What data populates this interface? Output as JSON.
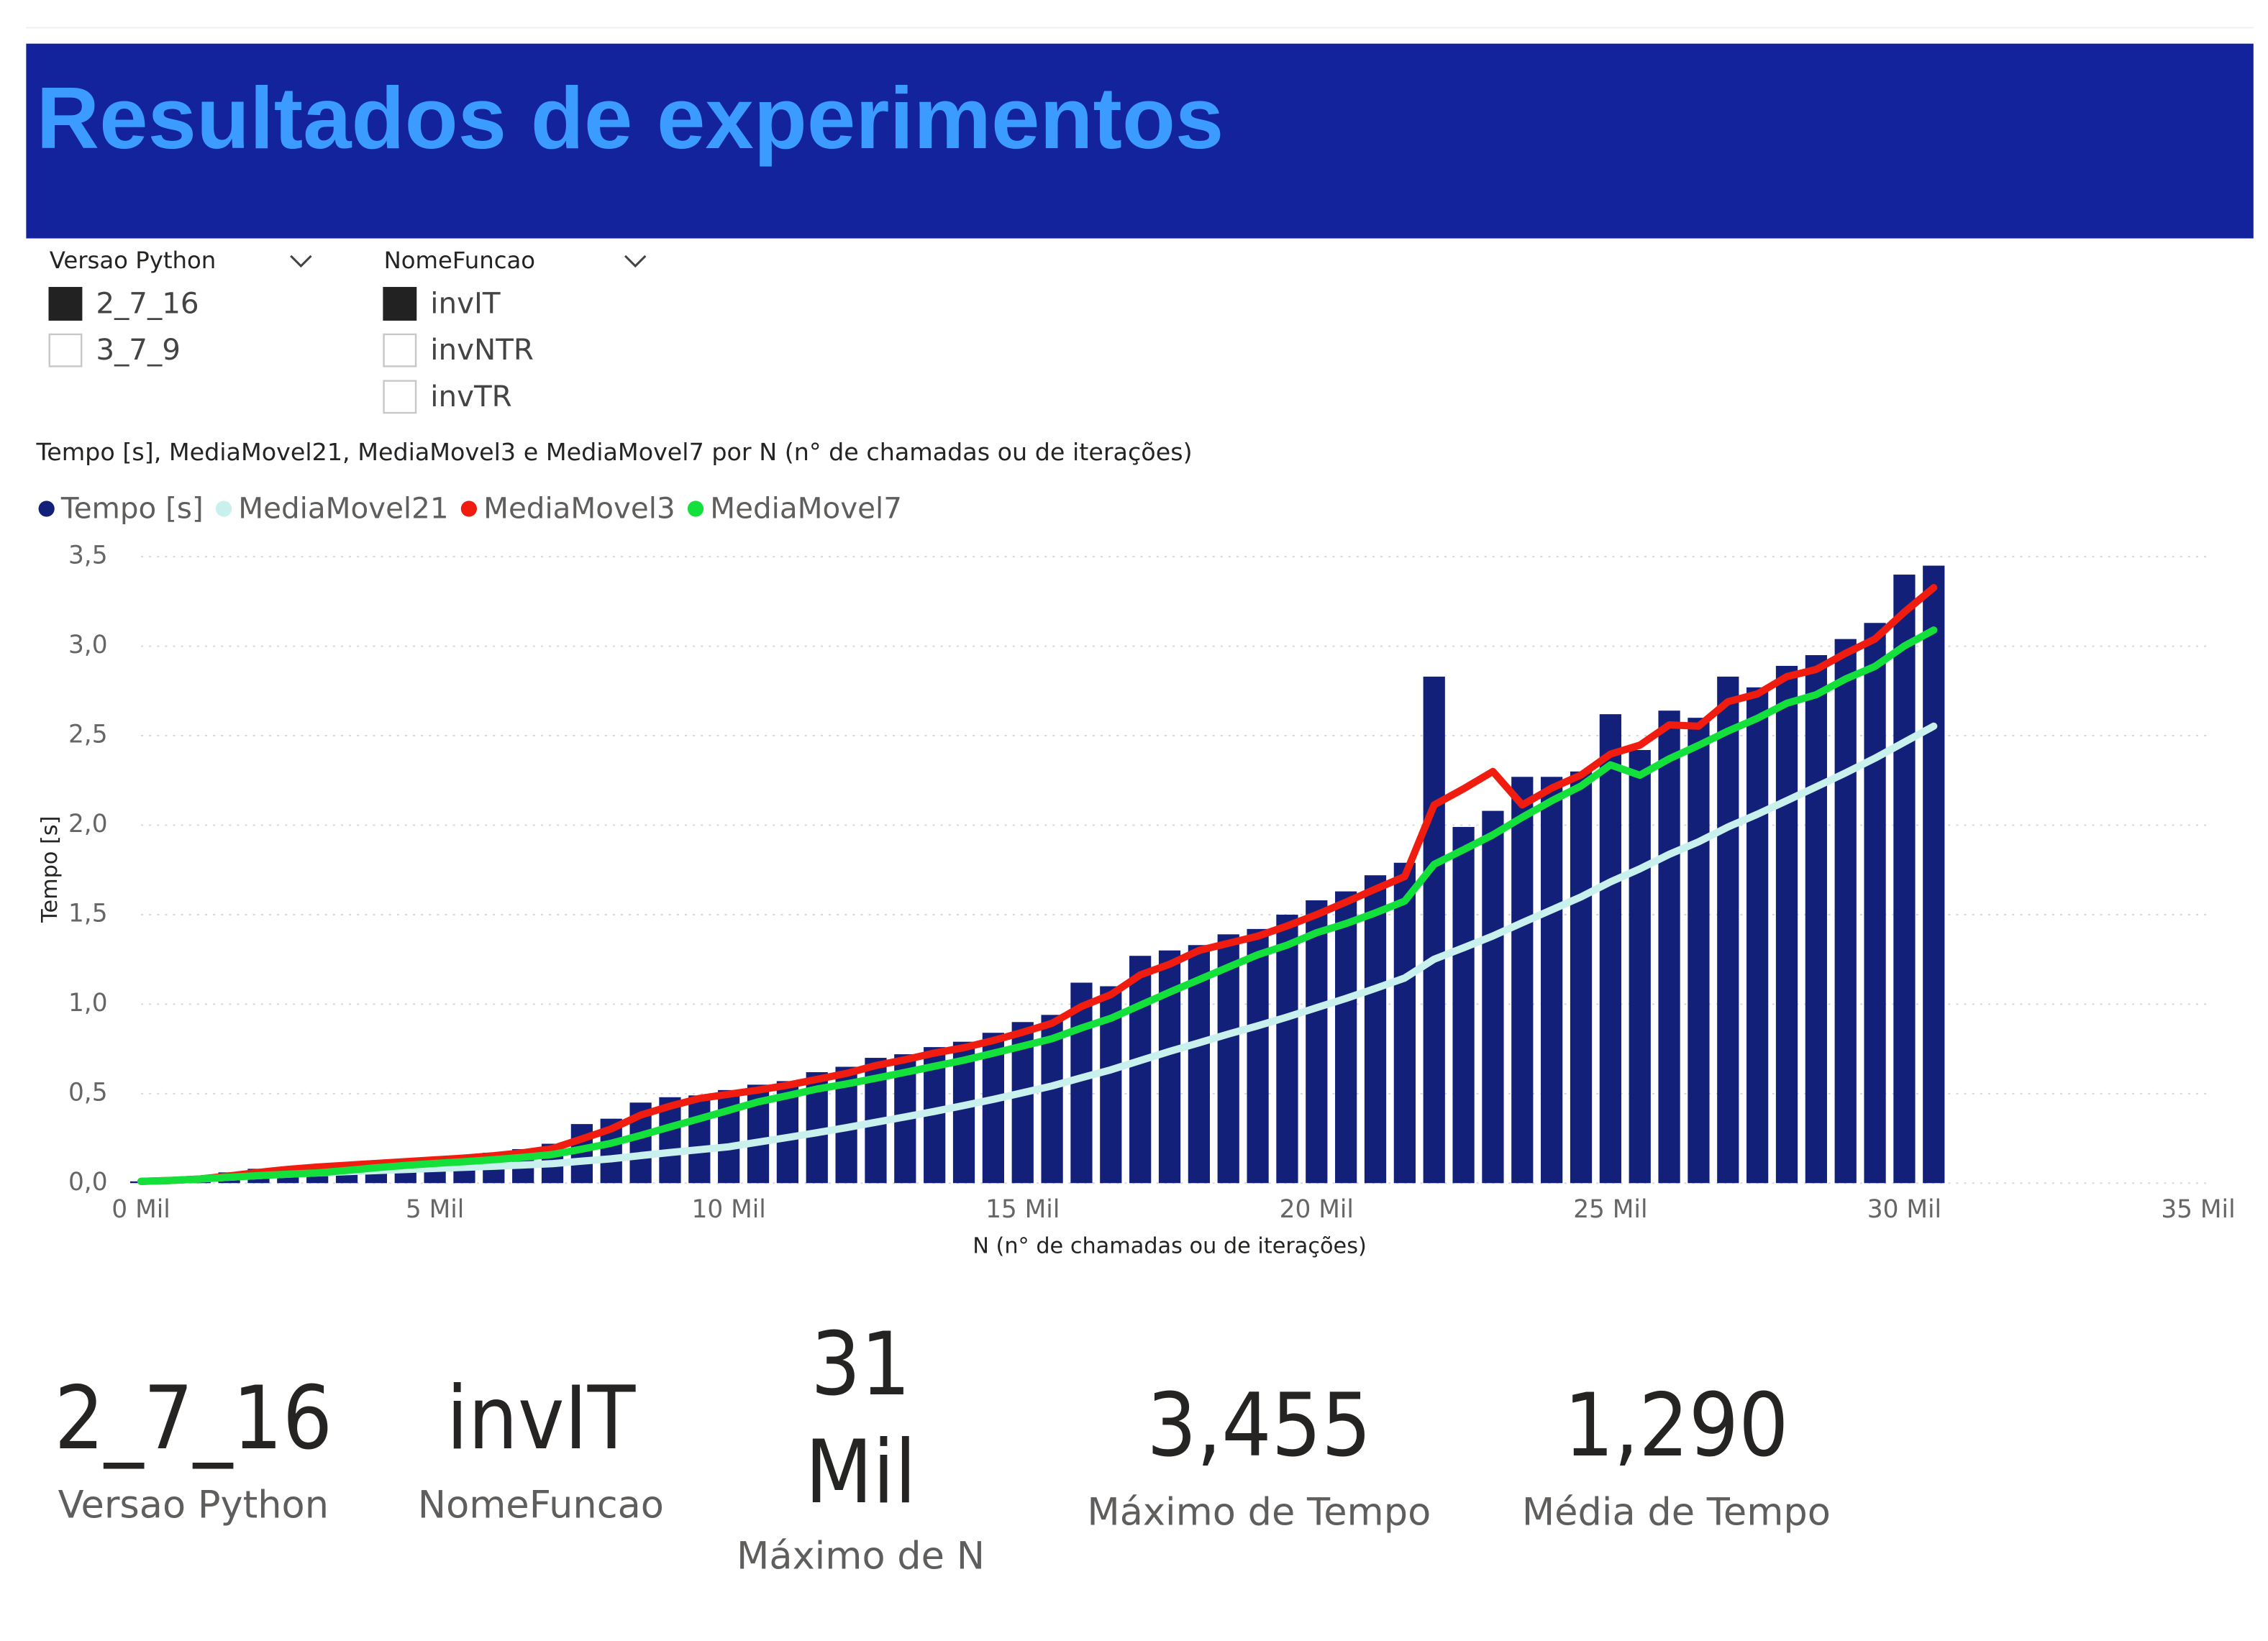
{
  "header": {
    "title": "Resultados de experimentos"
  },
  "slicers": [
    {
      "title": "Versao Python",
      "items": [
        {
          "label": "2_7_16",
          "selected": true
        },
        {
          "label": "3_7_9",
          "selected": false
        }
      ]
    },
    {
      "title": "NomeFuncao",
      "items": [
        {
          "label": "invIT",
          "selected": true
        },
        {
          "label": "invNTR",
          "selected": false
        },
        {
          "label": "invTR",
          "selected": false
        }
      ]
    }
  ],
  "chart_data": {
    "type": "combo",
    "title": "Tempo [s], MediaMovel21, MediaMovel3 e MediaMovel7 por N (n° de chamadas ou de iterações)",
    "xlabel": "N (n° de chamadas ou de iterações)",
    "ylabel": "Tempo [s]",
    "legend": "top-left",
    "grid": true,
    "x": [
      0,
      500,
      1000,
      1500,
      2000,
      2500,
      3000,
      3500,
      4000,
      4500,
      5000,
      5500,
      6000,
      6500,
      7000,
      7500,
      8000,
      8500,
      9000,
      9500,
      10000,
      10500,
      11000,
      11500,
      12000,
      12500,
      13000,
      13500,
      14000,
      14500,
      15000,
      15500,
      16000,
      16500,
      17000,
      17500,
      18000,
      18500,
      19000,
      19500,
      20000,
      20500,
      21000,
      21500,
      22000,
      22500,
      23000,
      23500,
      24000,
      24500,
      25000,
      25500,
      26000,
      26500,
      27000,
      27500,
      28000,
      28500,
      29000,
      29500,
      30000,
      30500
    ],
    "series": [
      {
        "name": "Tempo [s]",
        "type": "bar",
        "color": "#12207a",
        "values": [
          0.01,
          0.02,
          0.04,
          0.06,
          0.08,
          0.09,
          0.1,
          0.11,
          0.12,
          0.13,
          0.14,
          0.15,
          0.17,
          0.19,
          0.22,
          0.33,
          0.36,
          0.45,
          0.48,
          0.49,
          0.52,
          0.55,
          0.57,
          0.62,
          0.65,
          0.7,
          0.72,
          0.76,
          0.79,
          0.84,
          0.9,
          0.94,
          1.12,
          1.1,
          1.27,
          1.3,
          1.33,
          1.39,
          1.42,
          1.5,
          1.58,
          1.63,
          1.72,
          1.79,
          2.83,
          1.99,
          2.08,
          2.27,
          2.27,
          2.3,
          2.62,
          2.42,
          2.64,
          2.6,
          2.83,
          2.77,
          2.89,
          2.95,
          3.04,
          3.13,
          3.4,
          3.45
        ]
      },
      {
        "name": "MediaMovel21",
        "type": "line",
        "color": "#c8f0ec",
        "values": [
          0.01,
          0.015,
          0.023,
          0.033,
          0.042,
          0.05,
          0.057,
          0.064,
          0.07,
          0.076,
          0.082,
          0.088,
          0.094,
          0.101,
          0.109,
          0.123,
          0.136,
          0.154,
          0.171,
          0.187,
          0.203,
          0.229,
          0.255,
          0.282,
          0.31,
          0.34,
          0.37,
          0.401,
          0.434,
          0.468,
          0.505,
          0.543,
          0.589,
          0.633,
          0.685,
          0.736,
          0.784,
          0.833,
          0.879,
          0.928,
          0.98,
          1.032,
          1.088,
          1.146,
          1.251,
          1.315,
          1.381,
          1.455,
          1.527,
          1.599,
          1.683,
          1.756,
          1.837,
          1.907,
          1.99,
          2.061,
          2.137,
          2.214,
          2.292,
          2.374,
          2.464,
          2.553
        ]
      },
      {
        "name": "MediaMovel3",
        "type": "line",
        "color": "#f01c10",
        "values": [
          0.01,
          0.015,
          0.023,
          0.04,
          0.06,
          0.077,
          0.09,
          0.1,
          0.11,
          0.12,
          0.13,
          0.14,
          0.153,
          0.17,
          0.193,
          0.247,
          0.303,
          0.38,
          0.43,
          0.473,
          0.497,
          0.52,
          0.547,
          0.58,
          0.613,
          0.657,
          0.69,
          0.727,
          0.757,
          0.797,
          0.843,
          0.893,
          0.987,
          1.053,
          1.163,
          1.223,
          1.3,
          1.34,
          1.38,
          1.437,
          1.5,
          1.57,
          1.643,
          1.713,
          2.113,
          2.203,
          2.3,
          2.113,
          2.207,
          2.28,
          2.397,
          2.447,
          2.56,
          2.553,
          2.69,
          2.733,
          2.83,
          2.87,
          2.96,
          3.04,
          3.19,
          3.327
        ]
      },
      {
        "name": "MediaMovel7",
        "type": "line",
        "color": "#14e03c",
        "values": [
          0.01,
          0.015,
          0.023,
          0.033,
          0.042,
          0.05,
          0.057,
          0.071,
          0.086,
          0.099,
          0.11,
          0.12,
          0.131,
          0.144,
          0.16,
          0.19,
          0.223,
          0.267,
          0.314,
          0.36,
          0.407,
          0.454,
          0.489,
          0.526,
          0.554,
          0.586,
          0.619,
          0.653,
          0.687,
          0.726,
          0.766,
          0.807,
          0.867,
          0.921,
          0.994,
          1.067,
          1.137,
          1.207,
          1.276,
          1.33,
          1.399,
          1.45,
          1.51,
          1.576,
          1.781,
          1.863,
          1.946,
          2.044,
          2.136,
          2.219,
          2.337,
          2.279,
          2.371,
          2.446,
          2.526,
          2.597,
          2.681,
          2.729,
          2.817,
          2.887,
          3.001,
          3.09
        ]
      }
    ],
    "xlim": [
      0,
      35000
    ],
    "xticks": [
      {
        "value": 0,
        "label": "0 Mil"
      },
      {
        "value": 5000,
        "label": "5 Mil"
      },
      {
        "value": 10000,
        "label": "10 Mil"
      },
      {
        "value": 15000,
        "label": "15 Mil"
      },
      {
        "value": 20000,
        "label": "20 Mil"
      },
      {
        "value": 25000,
        "label": "25 Mil"
      },
      {
        "value": 30000,
        "label": "30 Mil"
      },
      {
        "value": 35000,
        "label": "35 Mil"
      }
    ],
    "ylim": [
      0,
      3.5
    ],
    "yticks": [
      {
        "value": 0,
        "label": "0,0"
      },
      {
        "value": 0.5,
        "label": "0,5"
      },
      {
        "value": 1,
        "label": "1,0"
      },
      {
        "value": 1.5,
        "label": "1,5"
      },
      {
        "value": 2,
        "label": "2,0"
      },
      {
        "value": 2.5,
        "label": "2,5"
      },
      {
        "value": 3,
        "label": "3,0"
      },
      {
        "value": 3.5,
        "label": "3,5"
      }
    ]
  },
  "cards": [
    {
      "value": "2_7_16",
      "label": "Versao Python"
    },
    {
      "value": "invIT",
      "label": "NomeFuncao"
    },
    {
      "value": [
        "31",
        "Mil"
      ],
      "label": "Máximo de N"
    },
    {
      "value": "3,455",
      "label": "Máximo de Tempo"
    },
    {
      "value": "1,290",
      "label": "Média de Tempo"
    }
  ]
}
